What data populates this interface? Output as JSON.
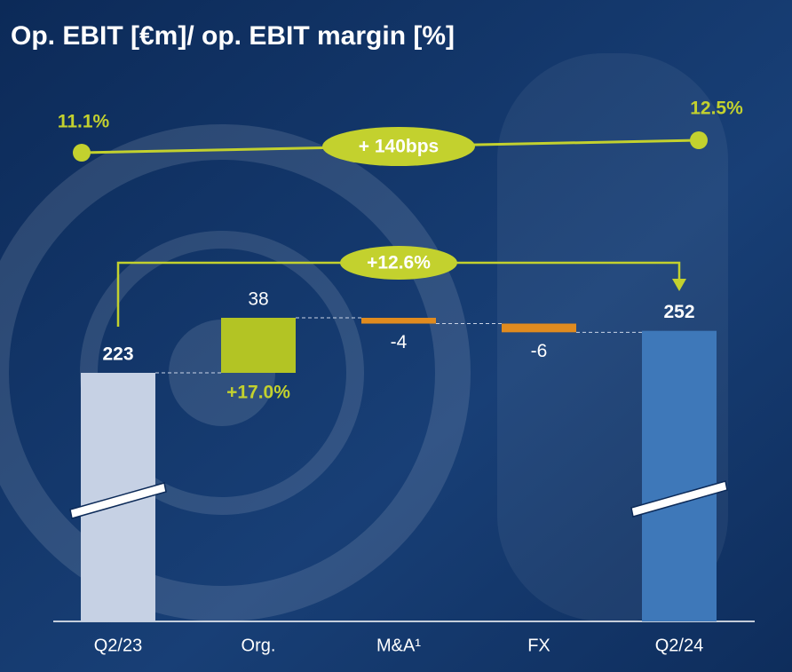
{
  "chart_data": {
    "type": "waterfall",
    "title": "Op. EBIT [€m]/ op. EBIT margin [%]",
    "categories": [
      "Q2/23",
      "Org.",
      "M&A¹",
      "FX",
      "Q2/24"
    ],
    "values": [
      223,
      38,
      -4,
      -6,
      252
    ],
    "colors": [
      "#c6d1e4",
      "#b3c424",
      "#e08b1f",
      "#e08b1f",
      "#3e78b9"
    ],
    "margin": {
      "values": [
        11.1,
        12.5
      ],
      "value_labels": [
        "11.1%",
        "12.5%"
      ],
      "change_label": "+ 140bps",
      "color": "#c3d12e"
    },
    "growth_label": "+12.6%",
    "organic_growth_label": "+17.0%"
  }
}
